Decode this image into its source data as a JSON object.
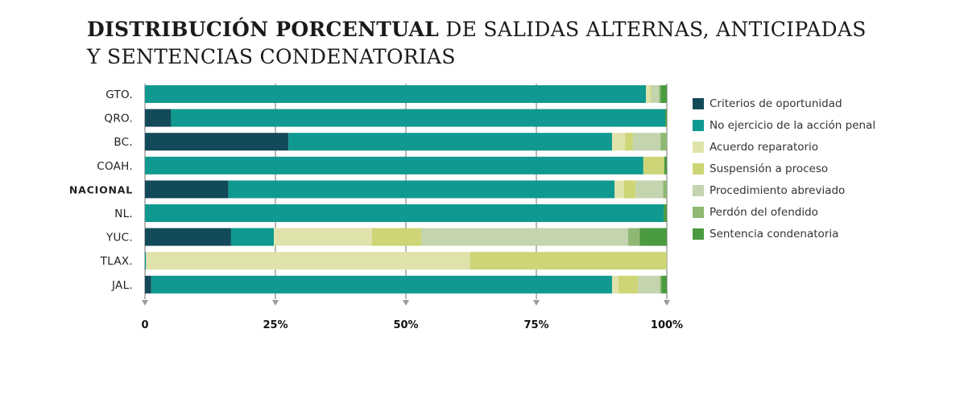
{
  "title": {
    "bold": "DISTRIBUCIÓN PORCENTUAL",
    "line1_rest": " DE SALIDAS ALTERNAS, ANTICIPADAS",
    "line2": "Y SENTENCIAS CONDENATORIAS"
  },
  "chart_data": {
    "type": "bar",
    "orientation": "horizontal",
    "stacked": true,
    "percent": true,
    "categories": [
      "GTO.",
      "QRO.",
      "BC.",
      "COAH.",
      "NACIONAL",
      "NL.",
      "YUC.",
      "TLAX.",
      "JAL."
    ],
    "highlight_category": "NACIONAL",
    "xlim": [
      0,
      100
    ],
    "xticks": [
      {
        "value": 0,
        "label": "0"
      },
      {
        "value": 25,
        "label": "25%"
      },
      {
        "value": 50,
        "label": "50%"
      },
      {
        "value": 75,
        "label": "75%"
      },
      {
        "value": 100,
        "label": "100%"
      }
    ],
    "legend_position": "right",
    "series": [
      {
        "name": "Criterios de oportunidad",
        "color": "#134a5a",
        "values": [
          0,
          5,
          27.5,
          0,
          16,
          0,
          16.5,
          0,
          1.2
        ]
      },
      {
        "name": "No ejercicio de la acción penal",
        "color": "#0f9990",
        "values": [
          96,
          94.7,
          62,
          95.5,
          74,
          99.4,
          8.2,
          0.2,
          88.3
        ]
      },
      {
        "name": "Acuerdo reparatorio",
        "color": "#dfe3ab",
        "values": [
          0.8,
          0,
          2.5,
          0,
          1.8,
          0,
          18.8,
          62.1,
          1.2
        ]
      },
      {
        "name": "Suspensión a proceso",
        "color": "#cdd576",
        "values": [
          0.2,
          0,
          1.5,
          4,
          2.2,
          0,
          9.5,
          37.7,
          3.8
        ]
      },
      {
        "name": "Procedimiento abreviado",
        "color": "#c4d4ae",
        "values": [
          1.5,
          0,
          5.3,
          0,
          5.3,
          0,
          39.6,
          0,
          4.2
        ]
      },
      {
        "name": "Perdón del ofendido",
        "color": "#8eb873",
        "values": [
          0.3,
          0,
          1.2,
          0,
          0.7,
          0,
          2.2,
          0,
          0.3
        ]
      },
      {
        "name": "Sentencia condenatoria",
        "color": "#4a9a3f",
        "values": [
          1.2,
          0.3,
          0,
          0.5,
          0,
          0.6,
          5.2,
          0,
          1.0
        ]
      }
    ]
  }
}
